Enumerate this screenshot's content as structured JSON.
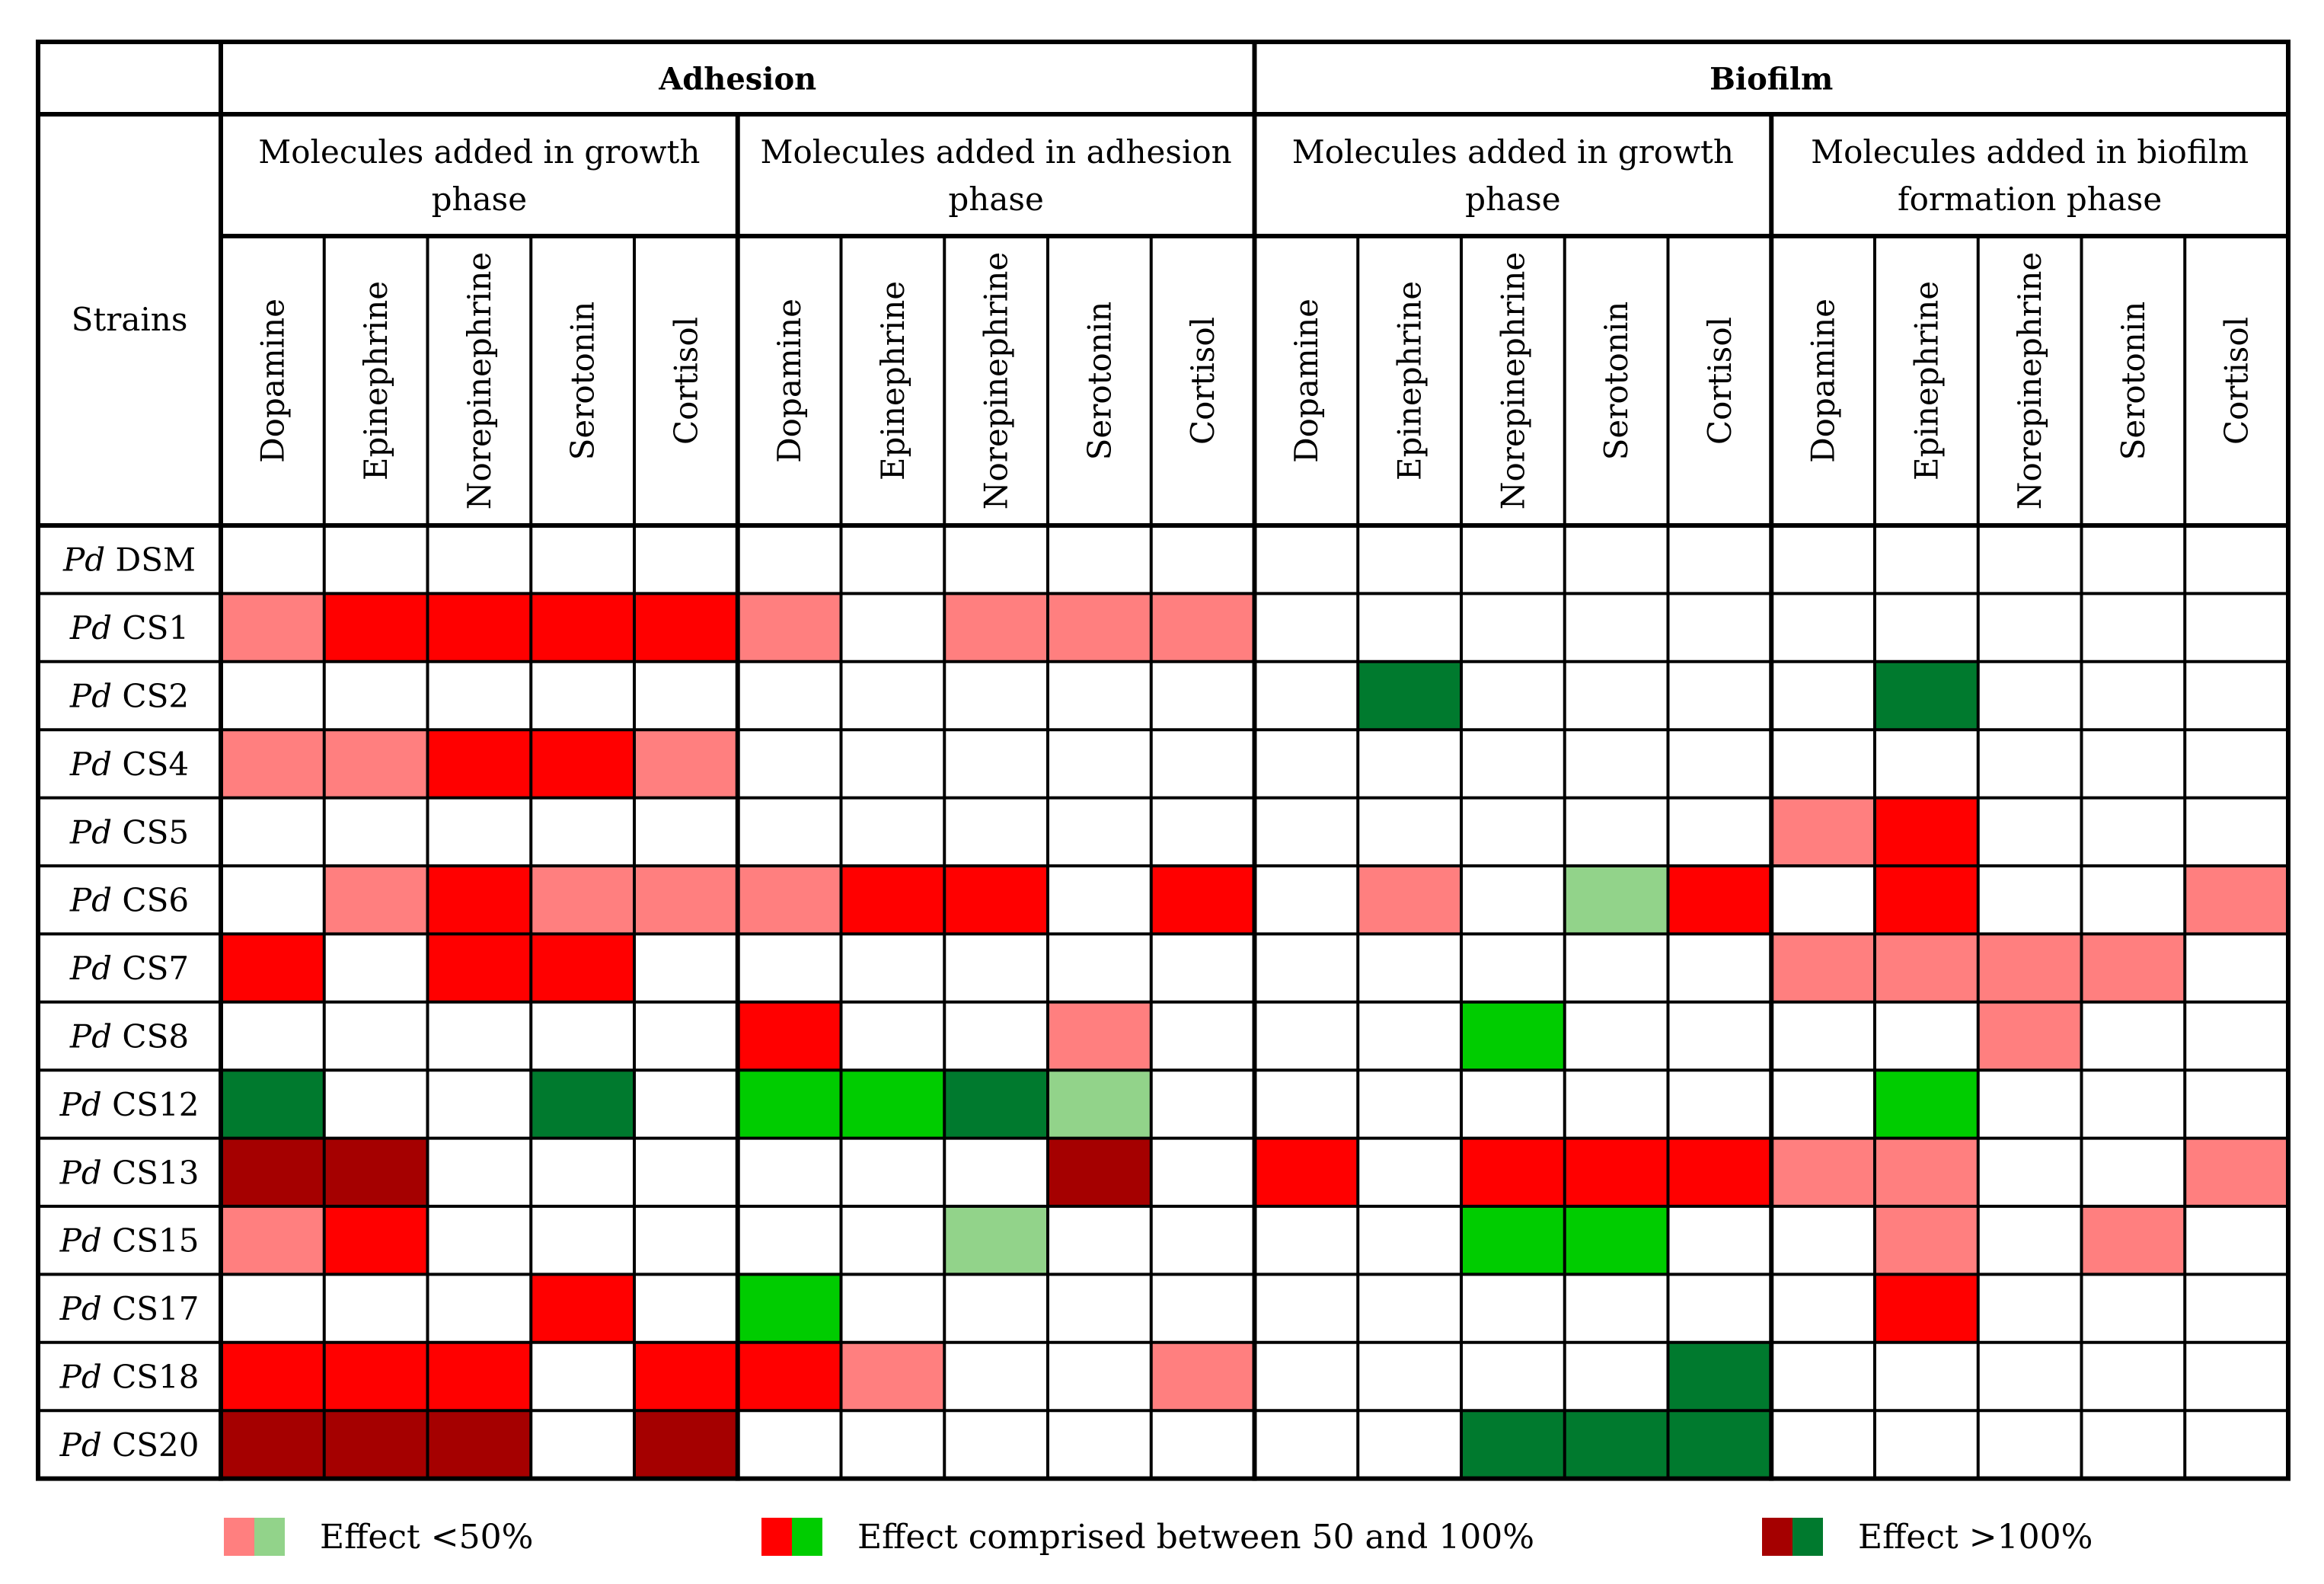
{
  "chart_data": {
    "type": "heatmap",
    "title": "",
    "row_header": "Strains",
    "strain_prefix": "Pd",
    "rows": [
      "DSM",
      "CS1",
      "CS2",
      "CS4",
      "CS5",
      "CS6",
      "CS7",
      "CS8",
      "CS12",
      "CS13",
      "CS15",
      "CS17",
      "CS18",
      "CS20"
    ],
    "groups": [
      {
        "label": "Adhesion",
        "subgroups": [
          {
            "label_lines": [
              "Molecules added in growth",
              "phase"
            ],
            "molecules": [
              "Dopamine",
              "Epinephrine",
              "Norepinephrine",
              "Serotonin",
              "Cortisol"
            ]
          },
          {
            "label_lines": [
              "Molecules added in adhesion",
              "phase"
            ],
            "molecules": [
              "Dopamine",
              "Epinephrine",
              "Norepinephrine",
              "Serotonin",
              "Cortisol"
            ]
          }
        ]
      },
      {
        "label": "Biofilm",
        "subgroups": [
          {
            "label_lines": [
              "Molecules added in growth",
              "phase"
            ],
            "molecules": [
              "Dopamine",
              "Epinephrine",
              "Norepinephrine",
              "Serotonin",
              "Cortisol"
            ]
          },
          {
            "label_lines": [
              "Molecules added in biofilm",
              "formation phase"
            ],
            "molecules": [
              "Dopamine",
              "Epinephrine",
              "Norepinephrine",
              "Serotonin",
              "Cortisol"
            ]
          }
        ]
      }
    ],
    "value_encoding": "0 = no effect; positive = increase (red), negative = decrease (green); 1 = <50%, 2 = between 50 and 100%, 3 = >100%",
    "values": [
      [
        0,
        0,
        0,
        0,
        0,
        0,
        0,
        0,
        0,
        0,
        0,
        0,
        0,
        0,
        0,
        0,
        0,
        0,
        0,
        0
      ],
      [
        1,
        2,
        2,
        2,
        2,
        1,
        0,
        1,
        1,
        1,
        0,
        0,
        0,
        0,
        0,
        0,
        0,
        0,
        0,
        0
      ],
      [
        0,
        0,
        0,
        0,
        0,
        0,
        0,
        0,
        0,
        0,
        0,
        -3,
        0,
        0,
        0,
        0,
        -3,
        0,
        0,
        0
      ],
      [
        1,
        1,
        2,
        2,
        1,
        0,
        0,
        0,
        0,
        0,
        0,
        0,
        0,
        0,
        0,
        0,
        0,
        0,
        0,
        0
      ],
      [
        0,
        0,
        0,
        0,
        0,
        0,
        0,
        0,
        0,
        0,
        0,
        0,
        0,
        0,
        0,
        1,
        2,
        0,
        0,
        0
      ],
      [
        0,
        1,
        2,
        1,
        1,
        1,
        2,
        2,
        0,
        2,
        0,
        1,
        0,
        -1,
        2,
        0,
        2,
        0,
        0,
        1
      ],
      [
        2,
        0,
        2,
        2,
        0,
        0,
        0,
        0,
        0,
        0,
        0,
        0,
        0,
        0,
        0,
        1,
        1,
        1,
        1,
        0
      ],
      [
        0,
        0,
        0,
        0,
        0,
        2,
        0,
        0,
        1,
        0,
        0,
        0,
        -2,
        0,
        0,
        0,
        0,
        1,
        0,
        0
      ],
      [
        -3,
        0,
        0,
        -3,
        0,
        -2,
        -2,
        -3,
        -1,
        0,
        0,
        0,
        0,
        0,
        0,
        0,
        -2,
        0,
        0,
        0
      ],
      [
        3,
        3,
        0,
        0,
        0,
        0,
        0,
        0,
        3,
        0,
        2,
        0,
        2,
        2,
        2,
        1,
        1,
        0,
        0,
        1
      ],
      [
        1,
        2,
        0,
        0,
        0,
        0,
        0,
        -1,
        0,
        0,
        0,
        0,
        -2,
        -2,
        0,
        0,
        1,
        0,
        1,
        0
      ],
      [
        0,
        0,
        0,
        2,
        0,
        -2,
        0,
        0,
        0,
        0,
        0,
        0,
        0,
        0,
        0,
        0,
        2,
        0,
        0,
        0
      ],
      [
        2,
        2,
        2,
        0,
        2,
        2,
        1,
        0,
        0,
        1,
        0,
        0,
        0,
        0,
        -3,
        0,
        0,
        0,
        0,
        0
      ],
      [
        3,
        3,
        3,
        0,
        3,
        0,
        0,
        0,
        0,
        0,
        0,
        0,
        -3,
        -3,
        -3,
        0,
        0,
        0,
        0,
        0
      ]
    ],
    "colors": {
      "none": "#ffffff",
      "red_1": "#ff7f7f",
      "red_2": "#ff0000",
      "red_3": "#a50000",
      "green_1": "#92d38a",
      "green_2": "#00cc00",
      "green_3": "#007a2e"
    },
    "legend": [
      {
        "label": "Effect <50%",
        "colors": [
          "#ff7f7f",
          "#92d38a"
        ]
      },
      {
        "label": "Effect comprised between 50 and 100%",
        "colors": [
          "#ff0000",
          "#00cc00"
        ]
      },
      {
        "label": "Effect >100%",
        "colors": [
          "#a50000",
          "#007a2e"
        ]
      }
    ]
  }
}
